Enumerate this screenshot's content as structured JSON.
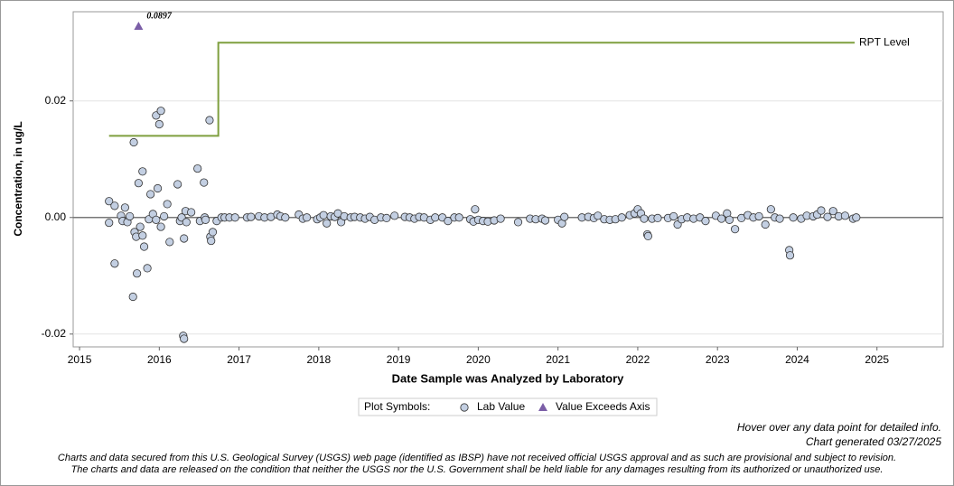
{
  "chart_data": {
    "type": "scatter",
    "y_label": "Concentration, in ug/L",
    "x_label": "Date Sample was Analyzed by Laboratory",
    "xlim": [
      2014.92,
      2025.83
    ],
    "ylim": [
      -0.0222,
      0.0353
    ],
    "xticks": [
      2015,
      2016,
      2017,
      2018,
      2019,
      2020,
      2021,
      2022,
      2023,
      2024,
      2025
    ],
    "yticks": [
      -0.02,
      {
        "value": 0,
        "label": "0.00"
      },
      0.02
    ],
    "grid": true,
    "zero_line": true,
    "legend_title": "Plot Symbols:",
    "series": [
      {
        "name": "Lab Value",
        "color": "#c3cfe2",
        "marker": "circle",
        "x": [
          2015.37,
          2015.37,
          2015.44,
          2015.44,
          2015.52,
          2015.54,
          2015.57,
          2015.6,
          2015.63,
          2015.67,
          2015.68,
          2015.69,
          2015.71,
          2015.72,
          2015.74,
          2015.76,
          2015.79,
          2015.79,
          2015.81,
          2015.85,
          2015.87,
          2015.89,
          2015.92,
          2015.96,
          2015.96,
          2015.98,
          2016.0,
          2016.02,
          2016.02,
          2016.06,
          2016.1,
          2016.13,
          2016.23,
          2016.26,
          2016.28,
          2016.3,
          2016.31,
          2016.31,
          2016.33,
          2016.34,
          2016.4,
          2016.48,
          2016.51,
          2016.56,
          2016.57,
          2016.58,
          2016.63,
          2016.64,
          2016.65,
          2016.67,
          2016.72,
          2016.78,
          2016.82,
          2016.88,
          2016.95,
          2017.1,
          2017.15,
          2017.25,
          2017.32,
          2017.4,
          2017.48,
          2017.52,
          2017.58,
          2017.75,
          2017.8,
          2017.85,
          2017.98,
          2018.02,
          2018.06,
          2018.1,
          2018.15,
          2018.2,
          2018.24,
          2018.28,
          2018.32,
          2018.4,
          2018.45,
          2018.52,
          2018.58,
          2018.64,
          2018.7,
          2018.78,
          2018.85,
          2018.95,
          2019.08,
          2019.14,
          2019.2,
          2019.26,
          2019.32,
          2019.4,
          2019.46,
          2019.55,
          2019.62,
          2019.7,
          2019.76,
          2019.9,
          2019.94,
          2019.96,
          2020.0,
          2020.06,
          2020.12,
          2020.2,
          2020.28,
          2020.5,
          2020.65,
          2020.72,
          2020.8,
          2020.84,
          2021.0,
          2021.05,
          2021.08,
          2021.3,
          2021.38,
          2021.45,
          2021.5,
          2021.58,
          2021.65,
          2021.72,
          2021.8,
          2021.9,
          2021.96,
          2022.0,
          2022.04,
          2022.08,
          2022.12,
          2022.13,
          2022.18,
          2022.25,
          2022.38,
          2022.45,
          2022.5,
          2022.55,
          2022.62,
          2022.7,
          2022.78,
          2022.85,
          2022.98,
          2023.05,
          2023.12,
          2023.15,
          2023.22,
          2023.3,
          2023.38,
          2023.45,
          2023.52,
          2023.6,
          2023.67,
          2023.72,
          2023.78,
          2023.9,
          2023.91,
          2023.95,
          2024.05,
          2024.12,
          2024.2,
          2024.25,
          2024.3,
          2024.38,
          2024.45,
          2024.52,
          2024.6,
          2024.7,
          2024.74
        ],
        "values": [
          0.0028,
          -0.0009,
          0.002,
          -0.0079,
          0.0003,
          -0.0006,
          0.0017,
          -0.0008,
          0.0002,
          -0.0136,
          0.0129,
          -0.0025,
          -0.0033,
          -0.0096,
          0.0059,
          -0.0016,
          0.0079,
          -0.0031,
          -0.005,
          -0.0087,
          -0.0003,
          0.004,
          0.0006,
          0.0175,
          -0.0004,
          0.005,
          0.016,
          -0.0016,
          0.0183,
          0.0002,
          0.0023,
          -0.0042,
          0.0057,
          -0.0006,
          0.0,
          -0.0203,
          -0.0208,
          -0.0036,
          0.0011,
          -0.0008,
          0.0009,
          0.0084,
          -0.0006,
          0.006,
          0.0,
          -0.0004,
          0.0167,
          -0.0033,
          -0.004,
          -0.0025,
          -0.0006,
          0.0,
          0.0,
          0.0,
          0.0,
          0.0,
          0.0001,
          0.0002,
          0.0,
          0.0001,
          0.0005,
          0.0002,
          0.0,
          0.0005,
          -0.0002,
          0.0,
          -0.0003,
          0.0,
          0.0004,
          -0.001,
          0.0002,
          0.0001,
          0.0007,
          -0.0008,
          0.0002,
          0.0,
          0.0001,
          0.0,
          -0.0002,
          0.0001,
          -0.0004,
          0.0,
          -0.0001,
          0.0003,
          0.0001,
          0.0,
          -0.0002,
          0.0001,
          0.0,
          -0.0004,
          0.0,
          0.0,
          -0.0006,
          0.0,
          0.0,
          -0.0003,
          -0.0007,
          0.0014,
          -0.0004,
          -0.0006,
          -0.0007,
          -0.0005,
          -0.0002,
          -0.0008,
          -0.0002,
          -0.0003,
          -0.0002,
          -0.0005,
          -0.0004,
          -0.001,
          0.0001,
          0.0,
          0.0001,
          -0.0001,
          0.0003,
          -0.0003,
          -0.0004,
          -0.0003,
          0.0,
          0.0004,
          0.0007,
          0.0014,
          0.0007,
          -0.0002,
          -0.0029,
          -0.0032,
          -0.0002,
          -0.0001,
          -0.0001,
          0.0002,
          -0.0012,
          -0.0003,
          0.0,
          -0.0002,
          0.0,
          -0.0006,
          0.0003,
          -0.0002,
          0.0007,
          -0.0004,
          -0.002,
          -0.0001,
          0.0004,
          0.0,
          0.0002,
          -0.0012,
          0.0014,
          0.0,
          -0.0002,
          -0.0056,
          -0.0065,
          0.0,
          -0.0002,
          0.0003,
          0.0002,
          0.0005,
          0.0012,
          0.0001,
          0.0011,
          0.0002,
          0.0003,
          -0.0002,
          0.0
        ]
      },
      {
        "name": "Value Exceeds Axis",
        "color": "#7b5ea7",
        "marker": "triangle",
        "x": [
          2015.74
        ],
        "values": [
          0.0897
        ],
        "value_labels": [
          "0.0897"
        ]
      }
    ],
    "reference_line": {
      "name": "RPT Level",
      "color": "#7f9f3f",
      "x": [
        2015.37,
        2016.74,
        2016.74,
        2024.72
      ],
      "values": [
        0.014,
        0.014,
        0.03,
        0.03
      ]
    },
    "notes": [
      "Hover over any data point for detailed info.",
      "Chart generated 03/27/2025"
    ],
    "disclaimer": [
      "Charts and data secured from this U.S. Geological Survey (USGS) web page (identified as IBSP) have not received official USGS approval and as such are provisional and subject to revision.",
      "The charts and data are released on the condition that neither the USGS nor the U.S. Government shall be held liable for any damages resulting from its authorized or unauthorized use."
    ]
  }
}
